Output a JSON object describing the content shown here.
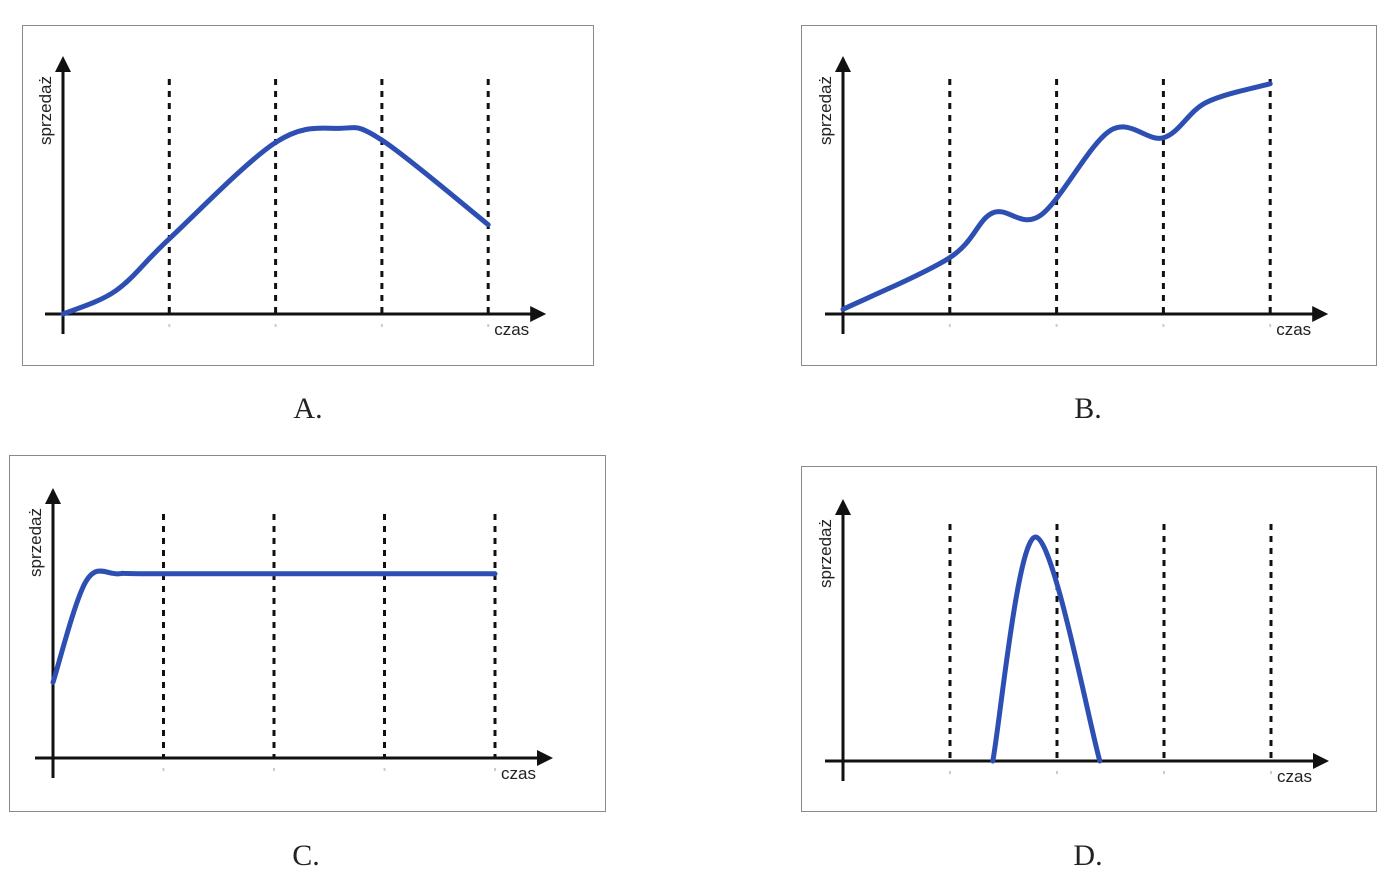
{
  "chart_data": [
    {
      "type": "line",
      "caption": "A.",
      "xlabel": "czas",
      "ylabel": "sprzedaż",
      "xlim": [
        0,
        4.3
      ],
      "ylim": [
        0,
        11
      ],
      "vertical_dashed_gridlines_at_x": [
        1,
        2,
        3,
        4
      ],
      "series": [
        {
          "name": "sprzedaż",
          "x": [
            0,
            0.5,
            1,
            2,
            2.6,
            3,
            4
          ],
          "y": [
            0,
            1,
            3.2,
            7.3,
            7.9,
            7.4,
            3.8
          ]
        }
      ]
    },
    {
      "type": "line",
      "caption": "B.",
      "xlabel": "czas",
      "ylabel": "sprzedaż",
      "xlim": [
        0,
        4.3
      ],
      "ylim": [
        0,
        11
      ],
      "vertical_dashed_gridlines_at_x": [
        1,
        2,
        3,
        4
      ],
      "series": [
        {
          "name": "sprzedaż",
          "x": [
            0,
            1,
            1.4,
            1.85,
            2.5,
            3,
            3.4,
            4
          ],
          "y": [
            0.2,
            2.4,
            4.3,
            4.2,
            7.8,
            7.5,
            9,
            9.8
          ]
        }
      ]
    },
    {
      "type": "line",
      "caption": "C.",
      "xlabel": "czas",
      "ylabel": "sprzedaż",
      "xlim": [
        0,
        4.3
      ],
      "ylim": [
        0,
        11
      ],
      "vertical_dashed_gridlines_at_x": [
        1,
        2,
        3,
        4
      ],
      "series": [
        {
          "name": "sprzedaż",
          "x": [
            0,
            0.3,
            0.6,
            1,
            4
          ],
          "y": [
            3.1,
            7.25,
            7.55,
            7.55,
            7.55
          ]
        }
      ]
    },
    {
      "type": "line",
      "caption": "D.",
      "xlabel": "czas",
      "ylabel": "sprzedaż",
      "xlim": [
        0,
        4.3
      ],
      "ylim": [
        0,
        11
      ],
      "vertical_dashed_gridlines_at_x": [
        1,
        2,
        3,
        4
      ],
      "series": [
        {
          "name": "sprzedaż",
          "x": [
            1.4,
            1.8,
            2.4
          ],
          "y": [
            0,
            9.45,
            0
          ]
        }
      ]
    }
  ],
  "colors": {
    "line": "#2d4fb3",
    "axis": "#111111",
    "grid": "#111111"
  }
}
